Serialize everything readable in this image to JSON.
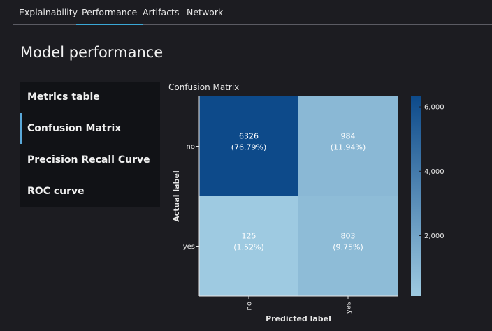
{
  "tabs": [
    {
      "label": "Explainability",
      "active": false
    },
    {
      "label": "Performance",
      "active": true
    },
    {
      "label": "Artifacts",
      "active": false
    },
    {
      "label": "Network",
      "active": false
    }
  ],
  "page_title": "Model performance",
  "sidenav": {
    "items": [
      {
        "label": "Metrics table",
        "active": false
      },
      {
        "label": "Confusion Matrix",
        "active": true
      },
      {
        "label": "Precision Recall Curve",
        "active": false
      },
      {
        "label": "ROC curve",
        "active": false
      }
    ]
  },
  "colors": {
    "background": "#1c1c21",
    "accent": "#3aa7d6",
    "heat_low": "#9ecae1",
    "heat_high": "#0d4a8a"
  },
  "chart_data": {
    "type": "heatmap",
    "title": "Confusion Matrix",
    "xlabel": "Predicted label",
    "ylabel": "Actual label",
    "x_categories": [
      "no",
      "yes"
    ],
    "y_categories": [
      "no",
      "yes"
    ],
    "values": [
      [
        6326,
        984
      ],
      [
        125,
        803
      ]
    ],
    "cell_labels": [
      [
        "(76.79%)",
        "(11.94%)"
      ],
      [
        "(1.52%)",
        "(9.75%)"
      ]
    ],
    "colorbar": {
      "ticks": [
        2000,
        4000,
        6000
      ],
      "tick_labels": [
        "2,000",
        "4,000",
        "6,000"
      ],
      "range": [
        125,
        6326
      ]
    }
  }
}
